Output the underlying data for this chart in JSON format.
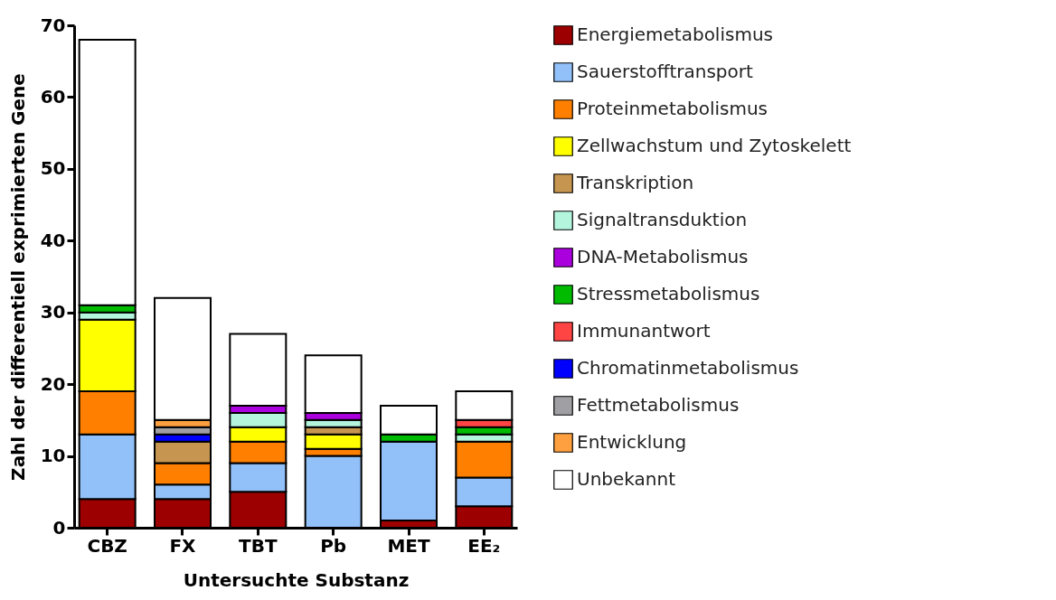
{
  "chart_data": {
    "type": "bar",
    "stacked": true,
    "xlabel": "Untersuchte Substanz",
    "ylabel": "Zahl der differentiell exprimierten Gene",
    "categories": [
      "CBZ",
      "FX",
      "TBT",
      "Pb",
      "MET",
      "EE₂"
    ],
    "ylim": [
      0,
      70
    ],
    "yticks": [
      0,
      10,
      20,
      30,
      40,
      50,
      60,
      70
    ],
    "grid": false,
    "legend": "right",
    "series": [
      {
        "name": "Energiemetabolismus",
        "color": "#9c0000",
        "values": [
          4,
          4,
          5,
          null,
          1,
          3
        ]
      },
      {
        "name": "Sauerstofftransport",
        "color": "#92c0f8",
        "values": [
          9,
          2,
          4,
          10,
          11,
          4
        ]
      },
      {
        "name": "Proteinmetabolismus",
        "color": "#ff8000",
        "values": [
          6,
          3,
          3,
          1,
          null,
          5
        ]
      },
      {
        "name": "Zellwachstum und Zytoskelett",
        "color": "#ffff00",
        "values": [
          10,
          null,
          2,
          2,
          null,
          null
        ]
      },
      {
        "name": "Transkription",
        "color": "#c69650",
        "values": [
          null,
          3,
          null,
          1,
          null,
          null
        ]
      },
      {
        "name": "Signaltransduktion",
        "color": "#b4f5de",
        "values": [
          1,
          null,
          2,
          1,
          null,
          1
        ]
      },
      {
        "name": "DNA-Metabolismus",
        "color": "#aa00dd",
        "values": [
          null,
          null,
          1,
          1,
          null,
          null
        ]
      },
      {
        "name": "Stressmetabolismus",
        "color": "#00bb00",
        "values": [
          1,
          null,
          null,
          null,
          1,
          1
        ]
      },
      {
        "name": "Immunantwort",
        "color": "#ff4444",
        "values": [
          null,
          null,
          null,
          null,
          null,
          1
        ]
      },
      {
        "name": "Chromatinmetabolismus",
        "color": "#0000ff",
        "values": [
          null,
          1,
          null,
          null,
          null,
          null
        ]
      },
      {
        "name": "Fettmetabolismus",
        "color": "#a0a0a4",
        "values": [
          null,
          1,
          null,
          null,
          null,
          null
        ]
      },
      {
        "name": "Entwicklung",
        "color": "#ffa040",
        "values": [
          null,
          1,
          null,
          null,
          null,
          null
        ]
      },
      {
        "name": "Unbekannt",
        "color": "#ffffff",
        "values": [
          37,
          17,
          10,
          8,
          4,
          4
        ]
      }
    ]
  }
}
